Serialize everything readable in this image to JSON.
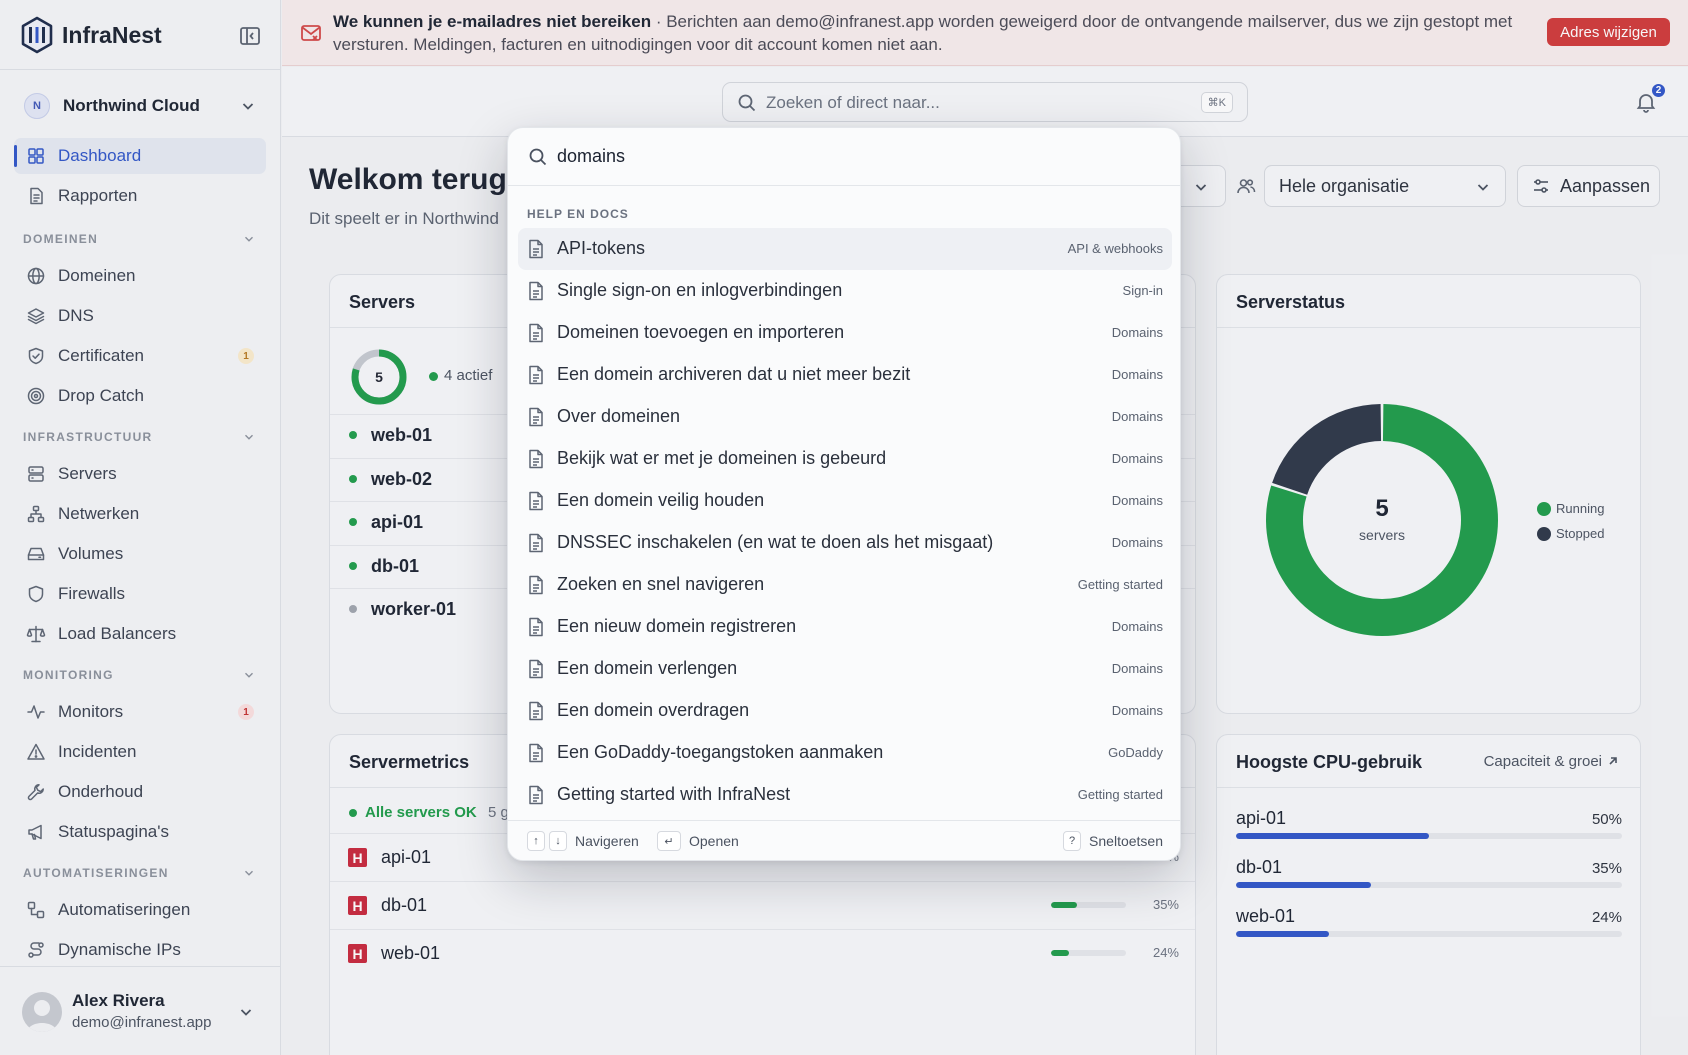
{
  "app": {
    "name": "InfraNest"
  },
  "sidebar": {
    "org": {
      "initial": "N",
      "name": "Northwind Cloud"
    },
    "top_items": [
      {
        "label": "Dashboard",
        "icon": "grid-icon",
        "active": true
      },
      {
        "label": "Rapporten",
        "icon": "report-icon"
      }
    ],
    "sections": [
      {
        "title": "DOMEINEN",
        "items": [
          {
            "label": "Domeinen",
            "icon": "globe-icon"
          },
          {
            "label": "DNS",
            "icon": "layers-icon"
          },
          {
            "label": "Certificaten",
            "icon": "shield-check-icon",
            "badge": "1",
            "badge_color": "amber"
          },
          {
            "label": "Drop Catch",
            "icon": "target-icon"
          }
        ]
      },
      {
        "title": "INFRASTRUCTUUR",
        "items": [
          {
            "label": "Servers",
            "icon": "server-icon"
          },
          {
            "label": "Netwerken",
            "icon": "network-icon"
          },
          {
            "label": "Volumes",
            "icon": "drive-icon"
          },
          {
            "label": "Firewalls",
            "icon": "shield-icon"
          },
          {
            "label": "Load Balancers",
            "icon": "scale-icon"
          }
        ]
      },
      {
        "title": "MONITORING",
        "items": [
          {
            "label": "Monitors",
            "icon": "pulse-icon",
            "badge": "1",
            "badge_color": "red"
          },
          {
            "label": "Incidenten",
            "icon": "alert-icon"
          },
          {
            "label": "Onderhoud",
            "icon": "wrench-icon"
          },
          {
            "label": "Statuspagina's",
            "icon": "megaphone-icon"
          }
        ]
      },
      {
        "title": "AUTOMATISERINGEN",
        "items": [
          {
            "label": "Automatiseringen",
            "icon": "workflow-icon"
          },
          {
            "label": "Dynamische IPs",
            "icon": "route-icon"
          }
        ]
      }
    ],
    "user": {
      "name": "Alex Rivera",
      "email": "demo@infranest.app"
    }
  },
  "banner": {
    "title": "We kunnen je e-mailadres niet bereiken",
    "message": "· Berichten aan demo@infranest.app worden geweigerd door de ontvangende mailserver, dus we zijn gestopt met versturen. Meldingen, facturen en uitnodigingen voor dit account komen niet aan.",
    "button": "Adres wijzigen"
  },
  "topbar": {
    "search_placeholder": "Zoeken of direct naar...",
    "shortcut": "⌘K",
    "notifications": "2"
  },
  "main": {
    "welcome": "Welkom terug,",
    "subtitle": "Dit speelt er in Northwind",
    "filter_scope": "Hele organisatie",
    "customize": "Aanpassen"
  },
  "servers_card": {
    "title": "Servers",
    "total": "5",
    "active_label": "4 actief",
    "rows": [
      {
        "name": "web-01",
        "status": "running"
      },
      {
        "name": "web-02",
        "status": "running"
      },
      {
        "name": "api-01",
        "status": "running"
      },
      {
        "name": "db-01",
        "status": "running"
      },
      {
        "name": "worker-01",
        "status": "stopped"
      }
    ]
  },
  "status_card": {
    "title": "Serverstatus",
    "center_value": "5",
    "center_label": "servers",
    "legend": [
      {
        "label": "Running",
        "color": "#1e9d4a"
      },
      {
        "label": "Stopped",
        "color": "#2d3748"
      }
    ]
  },
  "chart_data": {
    "type": "pie",
    "categories": [
      "Running",
      "Stopped"
    ],
    "values": [
      4,
      1
    ],
    "colors": [
      "#1e9d4a",
      "#2d3748"
    ]
  },
  "metrics_card": {
    "title": "Servermetrics",
    "ok_label": "Alle servers OK",
    "extra": "5 g",
    "rows": [
      {
        "name": "api-01",
        "pct_label": "50%",
        "pct": 50
      },
      {
        "name": "db-01",
        "pct_label": "35%",
        "pct": 35
      },
      {
        "name": "web-01",
        "pct_label": "24%",
        "pct": 24
      }
    ]
  },
  "cpu_card": {
    "title": "Hoogste CPU-gebruik",
    "link": "Capaciteit & groei",
    "rows": [
      {
        "name": "api-01",
        "pct_label": "50%",
        "pct": 50
      },
      {
        "name": "db-01",
        "pct_label": "35%",
        "pct": 35
      },
      {
        "name": "web-01",
        "pct_label": "24%",
        "pct": 24
      }
    ]
  },
  "palette": {
    "query": "domains",
    "section": "HELP EN DOCS",
    "items": [
      {
        "title": "API-tokens",
        "tag": "API & webhooks"
      },
      {
        "title": "Single sign-on en inlogverbindingen",
        "tag": "Sign-in"
      },
      {
        "title": "Domeinen toevoegen en importeren",
        "tag": "Domains"
      },
      {
        "title": "Een domein archiveren dat u niet meer bezit",
        "tag": "Domains"
      },
      {
        "title": "Over domeinen",
        "tag": "Domains"
      },
      {
        "title": "Bekijk wat er met je domeinen is gebeurd",
        "tag": "Domains"
      },
      {
        "title": "Een domein veilig houden",
        "tag": "Domains"
      },
      {
        "title": "DNSSEC inschakelen (en wat te doen als het misgaat)",
        "tag": "Domains"
      },
      {
        "title": "Zoeken en snel navigeren",
        "tag": "Getting started"
      },
      {
        "title": "Een nieuw domein registreren",
        "tag": "Domains"
      },
      {
        "title": "Een domein verlengen",
        "tag": "Domains"
      },
      {
        "title": "Een domein overdragen",
        "tag": "Domains"
      },
      {
        "title": "Een GoDaddy-toegangstoken aanmaken",
        "tag": "GoDaddy"
      },
      {
        "title": "Getting started with InfraNest",
        "tag": "Getting started"
      }
    ],
    "footer": {
      "up_key": "↑",
      "down_key": "↓",
      "navigate": "Navigeren",
      "enter_key": "↵",
      "open": "Openen",
      "help_key": "?",
      "shortcuts": "Sneltoetsen"
    }
  }
}
